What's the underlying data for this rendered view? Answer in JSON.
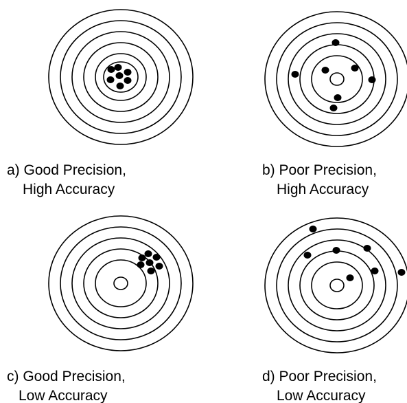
{
  "panels": [
    {
      "line1": "a) Good Precision,",
      "line2": "High Accuracy"
    },
    {
      "line1": "b) Poor Precision,",
      "line2": "High Accuracy"
    },
    {
      "line1": "c) Good Precision,",
      "line2": "Low Accuracy"
    },
    {
      "line1": "d) Poor Precision,",
      "line2": "Low Accuracy"
    }
  ]
}
